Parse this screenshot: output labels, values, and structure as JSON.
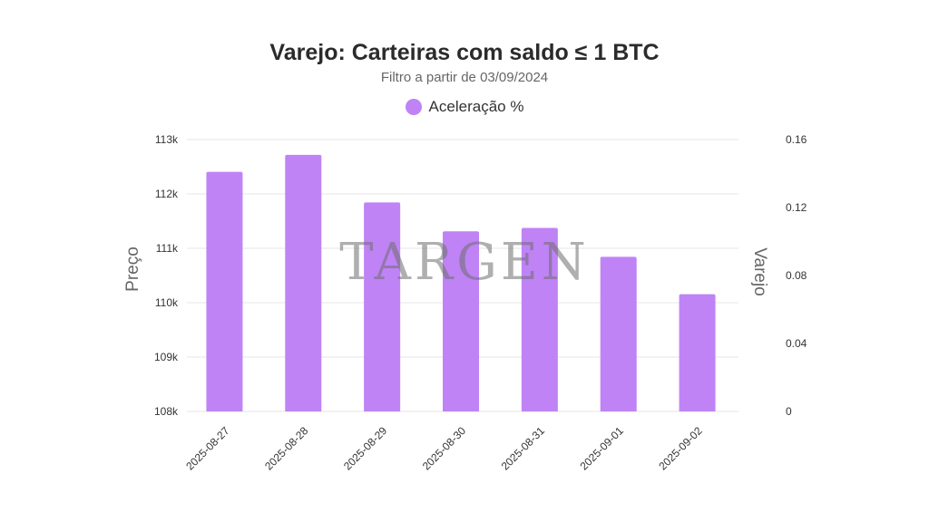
{
  "chart_data": {
    "type": "bar",
    "title": "Varejo: Carteiras com saldo ≤ 1 BTC",
    "subtitle": "Filtro a partir de 03/09/2024",
    "categories": [
      "2025-08-27",
      "2025-08-28",
      "2025-08-29",
      "2025-08-30",
      "2025-08-31",
      "2025-09-01",
      "2025-09-02"
    ],
    "series": [
      {
        "name": "Aceleração %",
        "axis": "right",
        "color": "#bf83f6",
        "values": [
          0.141,
          0.151,
          0.123,
          0.106,
          0.108,
          0.091,
          0.069
        ]
      }
    ],
    "y_left": {
      "label": "Preço",
      "ticks": [
        "108k",
        "109k",
        "110k",
        "111k",
        "112k",
        "113k"
      ],
      "ylim": [
        108000,
        113000
      ]
    },
    "y_right": {
      "label": "Varejo",
      "ticks": [
        "0",
        "0.04",
        "0.08",
        "0.12",
        "0.16"
      ],
      "ylim": [
        0,
        0.16
      ]
    },
    "grid": true,
    "legend_position": "top-center"
  },
  "watermark": "TARGEN"
}
